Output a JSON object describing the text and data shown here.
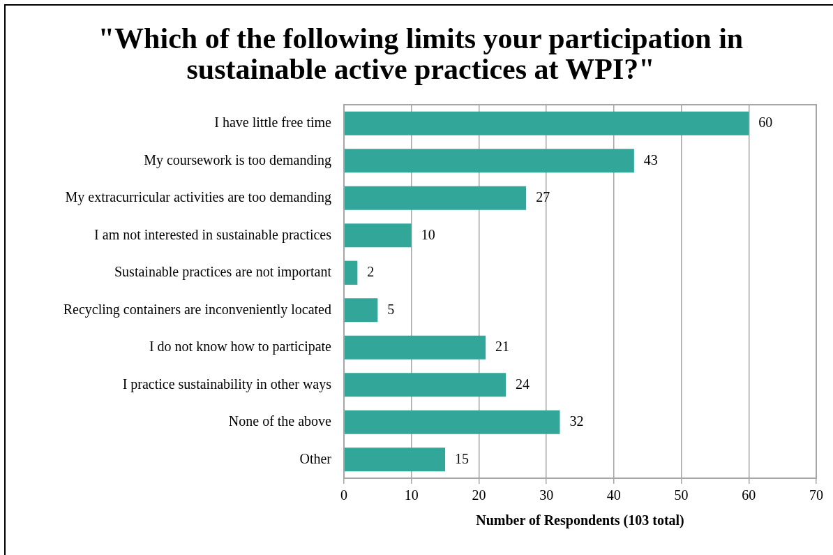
{
  "chart_data": {
    "type": "bar",
    "orientation": "horizontal",
    "title": "\"Which of the following limits your participation in sustainable active practices at WPI?\"",
    "xlabel": "Number of Respondents (103 total)",
    "categories": [
      "I have little free time",
      "My coursework is too demanding",
      "My extracurricular activities are too demanding",
      "I am not interested in sustainable practices",
      "Sustainable practices are not important",
      "Recycling containers are inconveniently located",
      "I do not know how to participate",
      "I practice sustainability in other ways",
      "None of the above",
      "Other"
    ],
    "values": [
      60,
      43,
      27,
      10,
      2,
      5,
      21,
      24,
      32,
      15
    ],
    "color": "#31a699",
    "xlim": [
      0,
      70
    ],
    "xticks": [
      0,
      10,
      20,
      30,
      40,
      50,
      60,
      70
    ],
    "grid": "x",
    "data_labels": true
  }
}
